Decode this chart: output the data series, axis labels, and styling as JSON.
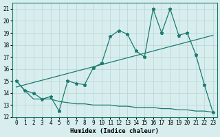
{
  "xlabel": "Humidex (Indice chaleur)",
  "ylabel": "",
  "xlim": [
    -0.5,
    23.5
  ],
  "ylim": [
    12,
    21.5
  ],
  "yticks": [
    12,
    13,
    14,
    15,
    16,
    17,
    18,
    19,
    20,
    21
  ],
  "xticks": [
    0,
    1,
    2,
    3,
    4,
    5,
    6,
    7,
    8,
    9,
    10,
    11,
    12,
    13,
    14,
    15,
    16,
    17,
    18,
    19,
    20,
    21,
    22,
    23
  ],
  "line1_x": [
    0,
    1,
    2,
    3,
    4,
    5,
    6,
    7,
    8,
    9,
    10,
    11,
    12,
    13,
    14,
    15,
    16,
    17,
    18,
    19,
    20,
    21,
    22,
    23
  ],
  "line1_y": [
    15.0,
    14.2,
    14.0,
    13.5,
    13.7,
    12.5,
    15.0,
    14.8,
    14.7,
    16.1,
    16.5,
    18.7,
    19.2,
    18.9,
    17.5,
    17.0,
    21.0,
    19.0,
    21.0,
    18.8,
    19.0,
    17.2,
    14.7,
    12.4
  ],
  "line2_x": [
    0,
    1,
    2,
    3,
    4,
    5,
    6,
    7,
    8,
    9,
    10,
    11,
    12,
    13,
    14,
    15,
    16,
    17,
    18,
    19,
    20,
    21,
    22,
    23
  ],
  "line2_y": [
    15.0,
    14.2,
    13.5,
    13.5,
    13.5,
    13.3,
    13.2,
    13.1,
    13.1,
    13.0,
    13.0,
    13.0,
    12.9,
    12.9,
    12.8,
    12.8,
    12.8,
    12.7,
    12.7,
    12.6,
    12.6,
    12.5,
    12.5,
    12.4
  ],
  "line3_x": [
    0,
    23
  ],
  "line3_y": [
    14.5,
    18.8
  ],
  "color": "#1a7a6e",
  "bg_color": "#d8eeee",
  "grid_color": "#b8d4d4",
  "marker": "*",
  "markersize": 3.5,
  "linewidth": 0.9,
  "title_fontsize": 7,
  "label_fontsize": 6.5,
  "tick_fontsize": 5.5
}
